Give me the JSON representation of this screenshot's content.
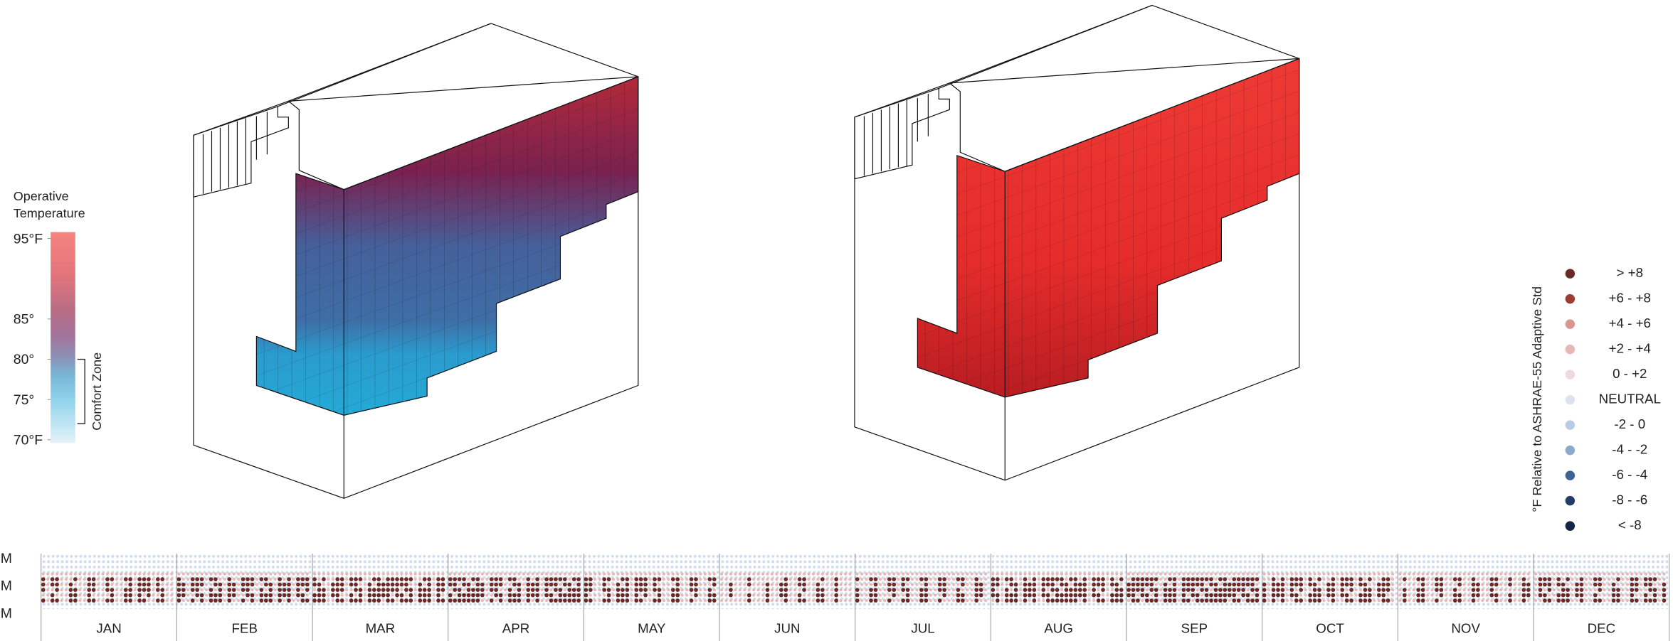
{
  "colorbar": {
    "title": [
      "Operative",
      "Temperature"
    ],
    "range": [
      70,
      95
    ],
    "ticks": [
      {
        "value": 95,
        "label": "95°F"
      },
      {
        "value": 85,
        "label": "85°"
      },
      {
        "value": 80,
        "label": "80°"
      },
      {
        "value": 75,
        "label": "75°"
      },
      {
        "value": 70,
        "label": "70°F"
      }
    ],
    "comfort_label": "Comfort Zone",
    "comfort_range": [
      72,
      80
    ]
  },
  "legend": {
    "title": "°F Relative to ASHRAE-55 Adaptive Std",
    "items": [
      {
        "label": "> +8",
        "color": "#6b2a25"
      },
      {
        "label": "+6 - +8",
        "color": "#9e3b33"
      },
      {
        "label": "+4 - +6",
        "color": "#d99591"
      },
      {
        "label": "+2 - +4",
        "color": "#e8b8b6"
      },
      {
        "label": "0 - +2",
        "color": "#f0d8db"
      },
      {
        "label": "NEUTRAL",
        "color": "#dde3ec"
      },
      {
        "label": "-2 -  0",
        "color": "#b8cbe3"
      },
      {
        "label": "-4 - -2",
        "color": "#8eaacb"
      },
      {
        "label": "-6 - -4",
        "color": "#3d6293"
      },
      {
        "label": "-8 - -6",
        "color": "#233d66"
      },
      {
        "label": "< -8",
        "color": "#152545"
      }
    ]
  },
  "timeline": {
    "row_labels": [
      "M",
      "M",
      "M"
    ],
    "months": [
      "JAN",
      "FEB",
      "MAR",
      "APR",
      "MAY",
      "JUN",
      "JUL",
      "AUG",
      "SEP",
      "OCT",
      "NOV",
      "DEC"
    ],
    "hot_share": [
      0.55,
      0.7,
      0.8,
      0.8,
      0.6,
      0.35,
      0.5,
      0.8,
      0.9,
      0.7,
      0.45,
      0.6
    ]
  }
}
